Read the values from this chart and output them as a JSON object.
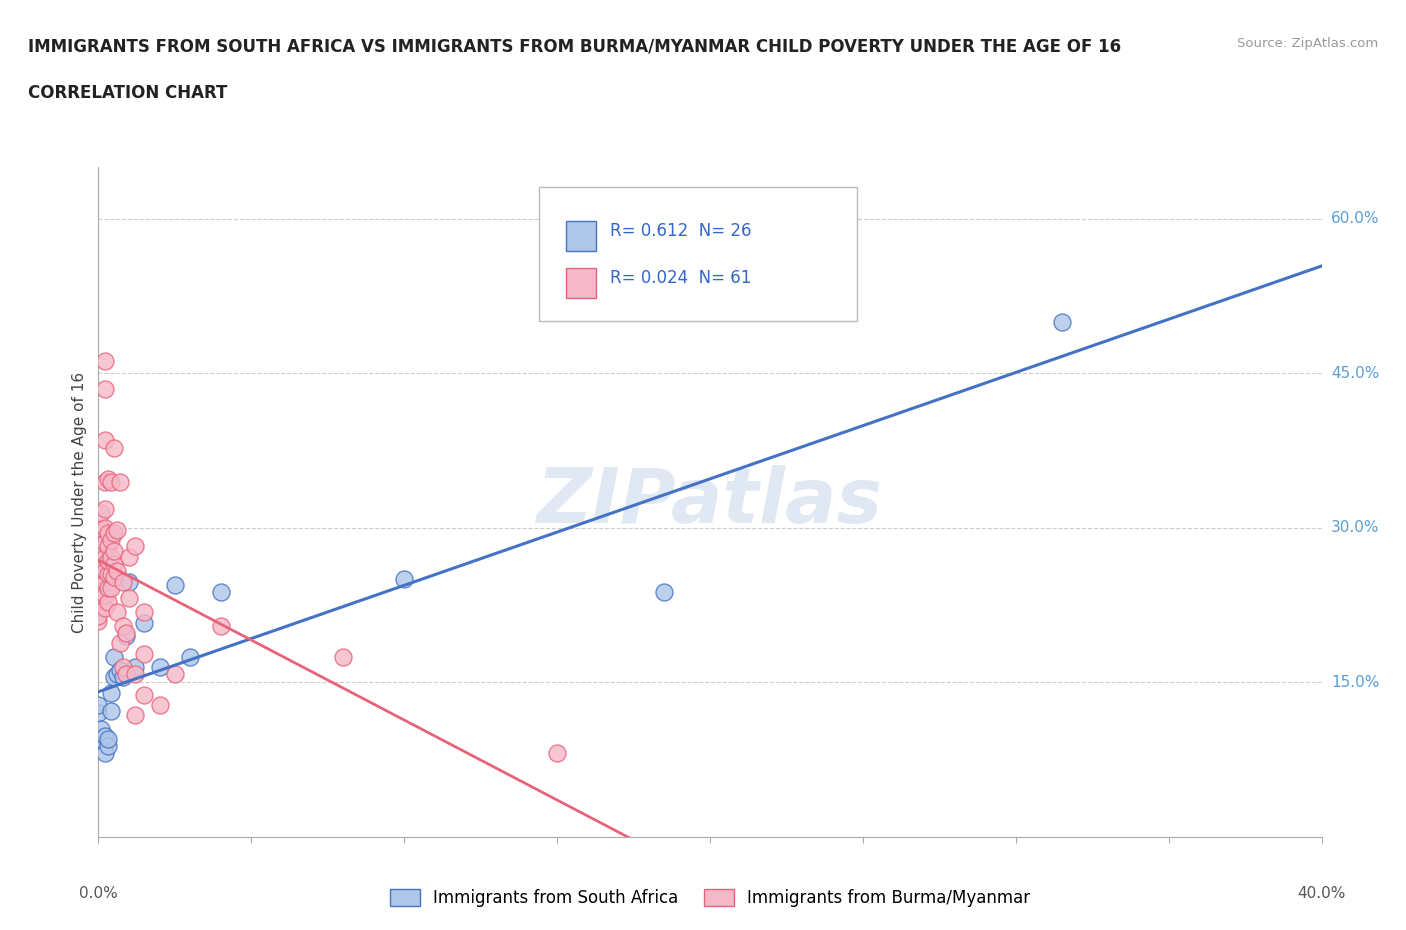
{
  "title": "IMMIGRANTS FROM SOUTH AFRICA VS IMMIGRANTS FROM BURMA/MYANMAR CHILD POVERTY UNDER THE AGE OF 16",
  "subtitle": "CORRELATION CHART",
  "source": "Source: ZipAtlas.com",
  "ylabel": "Child Poverty Under the Age of 16",
  "yticks": [
    "15.0%",
    "30.0%",
    "45.0%",
    "60.0%"
  ],
  "ytick_vals": [
    0.15,
    0.3,
    0.45,
    0.6
  ],
  "xlim": [
    0.0,
    0.4
  ],
  "ylim": [
    0.0,
    0.65
  ],
  "r_sa": 0.612,
  "n_sa": 26,
  "r_bm": 0.024,
  "n_bm": 61,
  "legend_label_sa": "Immigrants from South Africa",
  "legend_label_bm": "Immigrants from Burma/Myanmar",
  "color_sa": "#aec6e8",
  "color_bm": "#f5b8c8",
  "line_color_sa": "#4472c4",
  "line_color_bm": "#e8637a",
  "watermark": "ZIPatlas",
  "sa_points": [
    [
      0.0,
      0.12
    ],
    [
      0.0,
      0.128
    ],
    [
      0.001,
      0.095
    ],
    [
      0.001,
      0.105
    ],
    [
      0.002,
      0.082
    ],
    [
      0.002,
      0.098
    ],
    [
      0.003,
      0.088
    ],
    [
      0.003,
      0.095
    ],
    [
      0.004,
      0.122
    ],
    [
      0.004,
      0.14
    ],
    [
      0.005,
      0.155
    ],
    [
      0.005,
      0.175
    ],
    [
      0.006,
      0.158
    ],
    [
      0.007,
      0.162
    ],
    [
      0.008,
      0.155
    ],
    [
      0.009,
      0.195
    ],
    [
      0.01,
      0.248
    ],
    [
      0.012,
      0.165
    ],
    [
      0.015,
      0.208
    ],
    [
      0.02,
      0.165
    ],
    [
      0.025,
      0.245
    ],
    [
      0.03,
      0.175
    ],
    [
      0.04,
      0.238
    ],
    [
      0.1,
      0.25
    ],
    [
      0.185,
      0.238
    ],
    [
      0.315,
      0.5
    ]
  ],
  "bm_points": [
    [
      0.0,
      0.21
    ],
    [
      0.0,
      0.228
    ],
    [
      0.0,
      0.215
    ],
    [
      0.001,
      0.238
    ],
    [
      0.001,
      0.255
    ],
    [
      0.001,
      0.268
    ],
    [
      0.001,
      0.28
    ],
    [
      0.001,
      0.3
    ],
    [
      0.001,
      0.315
    ],
    [
      0.002,
      0.222
    ],
    [
      0.002,
      0.235
    ],
    [
      0.002,
      0.248
    ],
    [
      0.002,
      0.258
    ],
    [
      0.002,
      0.272
    ],
    [
      0.002,
      0.285
    ],
    [
      0.002,
      0.3
    ],
    [
      0.002,
      0.318
    ],
    [
      0.002,
      0.345
    ],
    [
      0.002,
      0.385
    ],
    [
      0.002,
      0.435
    ],
    [
      0.002,
      0.462
    ],
    [
      0.003,
      0.228
    ],
    [
      0.003,
      0.242
    ],
    [
      0.003,
      0.255
    ],
    [
      0.003,
      0.268
    ],
    [
      0.003,
      0.282
    ],
    [
      0.003,
      0.295
    ],
    [
      0.003,
      0.348
    ],
    [
      0.004,
      0.242
    ],
    [
      0.004,
      0.255
    ],
    [
      0.004,
      0.272
    ],
    [
      0.004,
      0.288
    ],
    [
      0.004,
      0.345
    ],
    [
      0.005,
      0.252
    ],
    [
      0.005,
      0.265
    ],
    [
      0.005,
      0.278
    ],
    [
      0.005,
      0.295
    ],
    [
      0.005,
      0.378
    ],
    [
      0.006,
      0.218
    ],
    [
      0.006,
      0.258
    ],
    [
      0.006,
      0.298
    ],
    [
      0.007,
      0.188
    ],
    [
      0.007,
      0.345
    ],
    [
      0.008,
      0.165
    ],
    [
      0.008,
      0.205
    ],
    [
      0.008,
      0.248
    ],
    [
      0.009,
      0.158
    ],
    [
      0.009,
      0.198
    ],
    [
      0.01,
      0.232
    ],
    [
      0.01,
      0.272
    ],
    [
      0.012,
      0.118
    ],
    [
      0.012,
      0.158
    ],
    [
      0.012,
      0.282
    ],
    [
      0.015,
      0.138
    ],
    [
      0.015,
      0.178
    ],
    [
      0.015,
      0.218
    ],
    [
      0.02,
      0.128
    ],
    [
      0.025,
      0.158
    ],
    [
      0.04,
      0.205
    ],
    [
      0.08,
      0.175
    ],
    [
      0.15,
      0.082
    ]
  ]
}
